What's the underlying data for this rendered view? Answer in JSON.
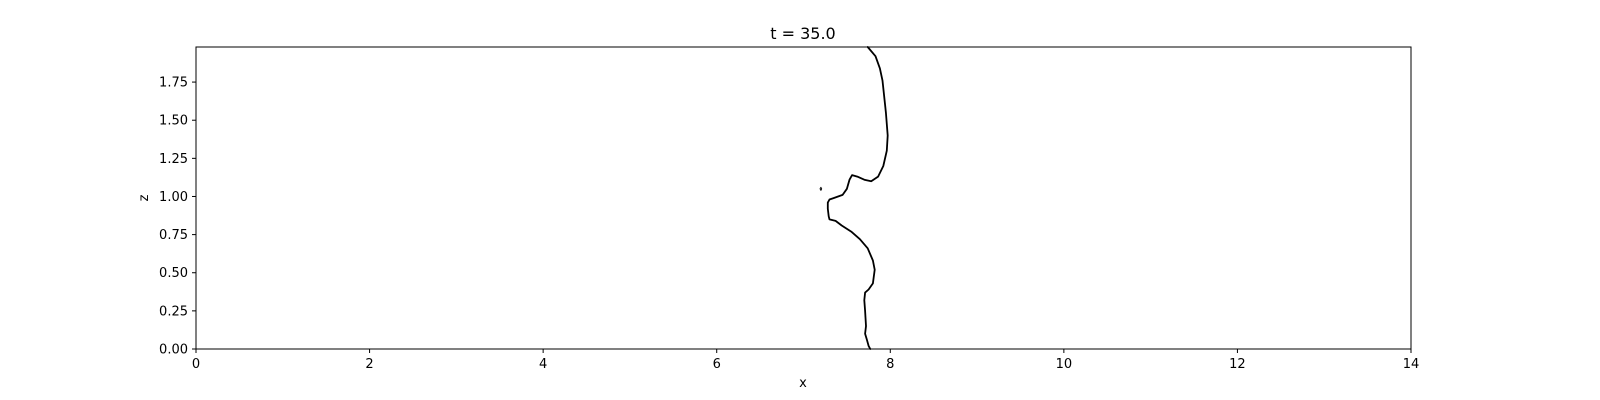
{
  "figure": {
    "background": "#ffffff",
    "line_color": "#000000"
  },
  "chart_data": {
    "type": "line",
    "title": "t = 35.0",
    "xlabel": "x",
    "ylabel": "z",
    "xlim": [
      0,
      14
    ],
    "ylim": [
      0,
      1.98
    ],
    "xticks": [
      0,
      2,
      4,
      6,
      8,
      10,
      12,
      14
    ],
    "xtick_labels": [
      "0",
      "2",
      "4",
      "6",
      "8",
      "10",
      "12",
      "14"
    ],
    "yticks": [
      0.0,
      0.25,
      0.5,
      0.75,
      1.0,
      1.25,
      1.5,
      1.75
    ],
    "ytick_labels": [
      "0.00",
      "0.25",
      "0.50",
      "0.75",
      "1.00",
      "1.25",
      "1.50",
      "1.75"
    ],
    "grid": false,
    "legend": "none",
    "series": [
      {
        "type": "contour",
        "points": [
          [
            7.74,
            1.98
          ],
          [
            7.83,
            1.92
          ],
          [
            7.88,
            1.84
          ],
          [
            7.91,
            1.76
          ],
          [
            7.94,
            1.6
          ],
          [
            7.95,
            1.55
          ],
          [
            7.97,
            1.4
          ],
          [
            7.96,
            1.3
          ],
          [
            7.92,
            1.2
          ],
          [
            7.86,
            1.13
          ],
          [
            7.78,
            1.1
          ],
          [
            7.7,
            1.11
          ],
          [
            7.62,
            1.13
          ],
          [
            7.56,
            1.14
          ],
          [
            7.53,
            1.11
          ],
          [
            7.5,
            1.05
          ],
          [
            7.45,
            1.01
          ],
          [
            7.35,
            0.99
          ],
          [
            7.3,
            0.98
          ],
          [
            7.28,
            0.96
          ],
          [
            7.28,
            0.92
          ],
          [
            7.29,
            0.87
          ],
          [
            7.3,
            0.85
          ],
          [
            7.37,
            0.84
          ],
          [
            7.44,
            0.81
          ],
          [
            7.55,
            0.77
          ],
          [
            7.65,
            0.72
          ],
          [
            7.74,
            0.66
          ],
          [
            7.8,
            0.58
          ],
          [
            7.82,
            0.52
          ],
          [
            7.8,
            0.43
          ],
          [
            7.75,
            0.39
          ],
          [
            7.71,
            0.37
          ],
          [
            7.7,
            0.32
          ],
          [
            7.71,
            0.25
          ],
          [
            7.72,
            0.15
          ],
          [
            7.71,
            0.1
          ],
          [
            7.73,
            0.06
          ],
          [
            7.75,
            0.02
          ],
          [
            7.77,
            0.0
          ]
        ]
      },
      {
        "type": "contour",
        "points": [
          [
            7.2,
            1.06
          ],
          [
            7.21,
            1.05
          ],
          [
            7.2,
            1.04
          ],
          [
            7.19,
            1.05
          ],
          [
            7.2,
            1.06
          ]
        ]
      }
    ]
  }
}
